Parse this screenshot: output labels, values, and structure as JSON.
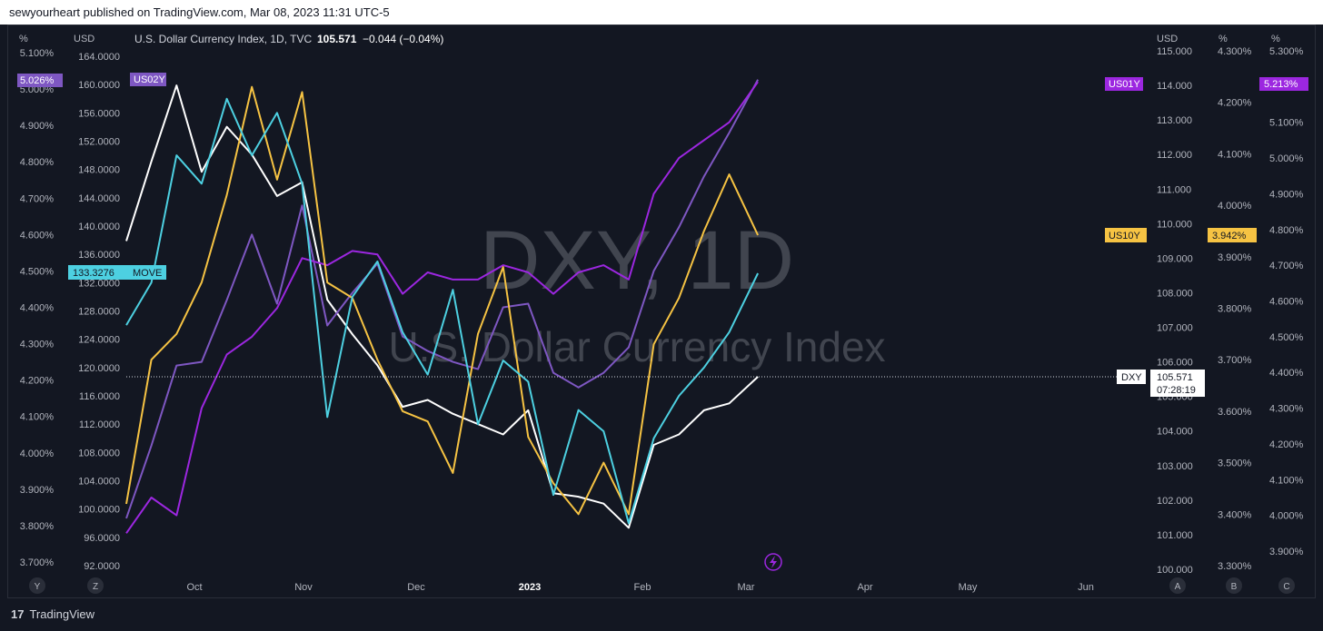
{
  "publish_line": "sewyourheart published on TradingView.com, Mar 08, 2023 11:31 UTC-5",
  "footer_brand": "TradingView",
  "footer_logo_mark": "17",
  "header": {
    "unit_pct": "%",
    "unit_usd": "USD",
    "symbol": "U.S. Dollar Currency Index, 1D, TVC",
    "last": "105.571",
    "change": "−0.044 (−0.04%)"
  },
  "watermark": {
    "line1": "DXY, 1D",
    "line2": "U.S. Dollar Currency Index"
  },
  "right_units": [
    "USD",
    "%",
    "%"
  ],
  "time_axis": [
    "Oct",
    "Nov",
    "Dec",
    "2023",
    "Feb",
    "Mar",
    "Apr",
    "May",
    "Jun"
  ],
  "scale_buttons_left": [
    "Y",
    "Z"
  ],
  "scale_buttons_right": [
    "A",
    "B",
    "C"
  ],
  "badges": {
    "us02y": "US02Y",
    "us02y_val": "5.026%",
    "us01y": "US01Y",
    "us01y_val": "5.213%",
    "us10y": "US10Y",
    "us10y_val": "3.942%",
    "move": "MOVE",
    "move_val": "133.3276",
    "dxy": "DXY",
    "dxy_val": "105.571",
    "dxy_time": "07:28:19"
  },
  "colors": {
    "dxy": "#ffffff",
    "us02y": "#7e57c2",
    "us01y": "#9c27e0",
    "us10y": "#f6c343",
    "move": "#4dd0e1",
    "bg": "#131722"
  },
  "chart_data": {
    "type": "line",
    "x_range": [
      "2022-09-12",
      "2023-06-15"
    ],
    "axes": {
      "pct_left": {
        "ticks": [
          "5.100%",
          "5.000%",
          "4.900%",
          "4.800%",
          "4.700%",
          "4.600%",
          "4.500%",
          "4.400%",
          "4.300%",
          "4.200%",
          "4.100%",
          "4.000%",
          "3.900%",
          "3.800%",
          "3.700%"
        ],
        "range": [
          3.7,
          5.1
        ]
      },
      "usd_left": {
        "ticks": [
          "164.0000",
          "160.0000",
          "156.0000",
          "152.0000",
          "148.0000",
          "144.0000",
          "140.0000",
          "136.0000",
          "132.0000",
          "128.0000",
          "124.0000",
          "120.0000",
          "116.0000",
          "112.0000",
          "108.0000",
          "104.0000",
          "100.0000",
          "96.0000",
          "92.0000"
        ],
        "range": [
          92,
          164
        ]
      },
      "usd_right": {
        "ticks": [
          "115.000",
          "114.000",
          "113.000",
          "112.000",
          "111.000",
          "110.000",
          "109.000",
          "108.000",
          "107.000",
          "106.000",
          "105.000",
          "104.000",
          "103.000",
          "102.000",
          "101.000",
          "100.000"
        ],
        "range": [
          100,
          115
        ]
      },
      "pct_right1": {
        "ticks": [
          "4.300%",
          "4.200%",
          "4.100%",
          "4.000%",
          "3.900%",
          "3.800%",
          "3.700%",
          "3.600%",
          "3.500%",
          "3.400%",
          "3.300%"
        ],
        "range": [
          3.3,
          4.3
        ]
      },
      "pct_right2": {
        "ticks": [
          "5.300%",
          "5.200%",
          "5.100%",
          "5.000%",
          "4.900%",
          "4.800%",
          "4.700%",
          "4.600%",
          "4.500%",
          "4.400%",
          "4.300%",
          "4.200%",
          "4.100%",
          "4.000%",
          "3.900%"
        ],
        "range": [
          3.9,
          5.3
        ]
      }
    },
    "series": [
      {
        "name": "DXY",
        "axis": "usd_right",
        "x": [
          "2022-09-12",
          "2022-09-19",
          "2022-09-26",
          "2022-10-03",
          "2022-10-10",
          "2022-10-17",
          "2022-10-24",
          "2022-10-31",
          "2022-11-07",
          "2022-11-14",
          "2022-11-21",
          "2022-11-28",
          "2022-12-05",
          "2022-12-12",
          "2022-12-19",
          "2022-12-26",
          "2023-01-02",
          "2023-01-09",
          "2023-01-16",
          "2023-01-23",
          "2023-01-30",
          "2023-02-06",
          "2023-02-13",
          "2023-02-20",
          "2023-02-27",
          "2023-03-07"
        ],
        "values": [
          109.5,
          111.8,
          114.0,
          111.5,
          112.8,
          112.0,
          110.8,
          111.2,
          107.8,
          106.8,
          105.9,
          104.7,
          104.9,
          104.5,
          104.2,
          103.9,
          104.6,
          102.2,
          102.1,
          101.9,
          101.2,
          103.6,
          103.9,
          104.6,
          104.8,
          105.57
        ]
      },
      {
        "name": "US02Y",
        "axis": "pct_left",
        "x": [
          "2022-09-12",
          "2022-09-19",
          "2022-09-26",
          "2022-10-03",
          "2022-10-10",
          "2022-10-17",
          "2022-10-24",
          "2022-10-31",
          "2022-11-07",
          "2022-11-14",
          "2022-11-21",
          "2022-11-28",
          "2022-12-05",
          "2022-12-12",
          "2022-12-19",
          "2022-12-26",
          "2023-01-02",
          "2023-01-09",
          "2023-01-16",
          "2023-01-23",
          "2023-01-30",
          "2023-02-06",
          "2023-02-13",
          "2023-02-20",
          "2023-02-27",
          "2023-03-07"
        ],
        "values": [
          3.82,
          4.02,
          4.24,
          4.25,
          4.42,
          4.6,
          4.41,
          4.68,
          4.35,
          4.44,
          4.52,
          4.32,
          4.28,
          4.25,
          4.23,
          4.4,
          4.41,
          4.22,
          4.18,
          4.22,
          4.29,
          4.5,
          4.62,
          4.76,
          4.88,
          5.026
        ]
      },
      {
        "name": "US01Y",
        "axis": "pct_right2",
        "x": [
          "2022-09-12",
          "2022-09-19",
          "2022-09-26",
          "2022-10-03",
          "2022-10-10",
          "2022-10-17",
          "2022-10-24",
          "2022-10-31",
          "2022-11-07",
          "2022-11-14",
          "2022-11-21",
          "2022-11-28",
          "2022-12-05",
          "2022-12-12",
          "2022-12-19",
          "2022-12-26",
          "2023-01-02",
          "2023-01-09",
          "2023-01-16",
          "2023-01-23",
          "2023-01-30",
          "2023-02-06",
          "2023-02-13",
          "2023-02-20",
          "2023-02-27",
          "2023-03-07"
        ],
        "values": [
          3.95,
          4.05,
          4.0,
          4.3,
          4.45,
          4.5,
          4.58,
          4.72,
          4.7,
          4.74,
          4.73,
          4.62,
          4.68,
          4.66,
          4.66,
          4.7,
          4.68,
          4.62,
          4.68,
          4.7,
          4.66,
          4.9,
          5.0,
          5.05,
          5.1,
          5.213
        ]
      },
      {
        "name": "US10Y",
        "axis": "pct_right1",
        "x": [
          "2022-09-12",
          "2022-09-19",
          "2022-09-26",
          "2022-10-03",
          "2022-10-10",
          "2022-10-17",
          "2022-10-24",
          "2022-10-31",
          "2022-11-07",
          "2022-11-14",
          "2022-11-21",
          "2022-11-28",
          "2022-12-05",
          "2022-12-12",
          "2022-12-19",
          "2022-12-26",
          "2023-01-02",
          "2023-01-09",
          "2023-01-16",
          "2023-01-23",
          "2023-01-30",
          "2023-02-06",
          "2023-02-13",
          "2023-02-20",
          "2023-02-27",
          "2023-03-07"
        ],
        "values": [
          3.42,
          3.7,
          3.75,
          3.85,
          4.02,
          4.23,
          4.05,
          4.22,
          3.85,
          3.82,
          3.7,
          3.6,
          3.58,
          3.48,
          3.75,
          3.88,
          3.55,
          3.46,
          3.4,
          3.5,
          3.4,
          3.73,
          3.82,
          3.95,
          4.06,
          3.942
        ]
      },
      {
        "name": "MOVE",
        "axis": "usd_left",
        "x": [
          "2022-09-12",
          "2022-09-19",
          "2022-09-26",
          "2022-10-03",
          "2022-10-10",
          "2022-10-17",
          "2022-10-24",
          "2022-10-31",
          "2022-11-07",
          "2022-11-14",
          "2022-11-21",
          "2022-11-28",
          "2022-12-05",
          "2022-12-12",
          "2022-12-19",
          "2022-12-26",
          "2023-01-02",
          "2023-01-09",
          "2023-01-16",
          "2023-01-23",
          "2023-01-30",
          "2023-02-06",
          "2023-02-13",
          "2023-02-20",
          "2023-02-27",
          "2023-03-07"
        ],
        "values": [
          126,
          132,
          150,
          146,
          158,
          150,
          156,
          146,
          113,
          130,
          135,
          125,
          119,
          131,
          112,
          121,
          118,
          102,
          114,
          111,
          98,
          110,
          116,
          120,
          125,
          133.33
        ]
      }
    ]
  }
}
